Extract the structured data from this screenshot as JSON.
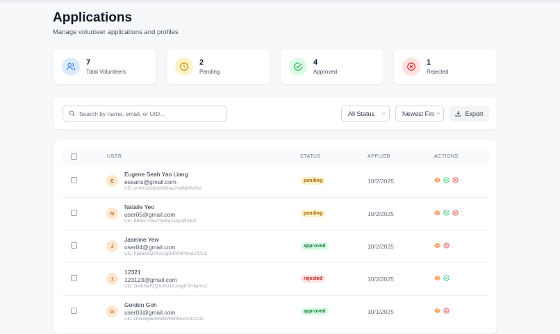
{
  "header": {
    "title": "Applications",
    "subtitle": "Manage volunteer applications and profiles"
  },
  "stats": [
    {
      "value": "7",
      "label": "Total Volunteers",
      "icon": "users-icon",
      "bg": "#dbeafe",
      "color": "#3b82f6"
    },
    {
      "value": "2",
      "label": "Pending",
      "icon": "clock-icon",
      "bg": "#fef3c7",
      "color": "#ca8a04"
    },
    {
      "value": "4",
      "label": "Approved",
      "icon": "check-circle-icon",
      "bg": "#dcfce7",
      "color": "#16a34a"
    },
    {
      "value": "1",
      "label": "Rejected",
      "icon": "x-circle-icon",
      "bg": "#fee2e2",
      "color": "#dc2626"
    }
  ],
  "filters": {
    "search_placeholder": "Search by name, email, or UID...",
    "status": "All Status",
    "sort": "Newest First",
    "export_label": "Export"
  },
  "table": {
    "columns": [
      "USER",
      "STATUS",
      "APPLIED",
      "ACTIONS"
    ],
    "rows": [
      {
        "initial": "E",
        "name": "Eugene Seah Yao Liang",
        "email": "eseahs@gmail.com",
        "uid": "UID: tzUHnXb2itcOWBHau7vwBd0PzPo2",
        "status": "pending",
        "applied": "10/2/2025",
        "actions": [
          "view",
          "approve",
          "reject"
        ]
      },
      {
        "initial": "N",
        "name": "Natalie Yeo",
        "email": "user05@gmail.com",
        "uid": "UID: BB9xv729xxYfydEgu3JIyJWUjkz1",
        "status": "pending",
        "applied": "10/2/2025",
        "actions": [
          "view",
          "approve",
          "reject"
        ]
      },
      {
        "initial": "J",
        "name": "Jasmine Yew",
        "email": "user04@gmail.com",
        "uid": "UID: KpBawSQG9vU1gRdRR0P3ywLYSVJ3",
        "status": "approved",
        "applied": "10/2/2025",
        "actions": [
          "view",
          "reject"
        ]
      },
      {
        "initial": "1",
        "name": "12321",
        "email": "123123@gmail.com",
        "uid": "UID: OuBrHwFZQ3UPzHhUzVgP7kY8qHm2",
        "status": "rejected",
        "applied": "10/2/2025",
        "actions": [
          "view",
          "approve"
        ]
      },
      {
        "initial": "G",
        "name": "Gorden Goh",
        "email": "user03@gmail.com",
        "uid": "UID: xPlovMp9utMWNVRWffs5mY4KC0J2",
        "status": "approved",
        "applied": "10/1/2025",
        "actions": [
          "view",
          "reject"
        ]
      }
    ]
  },
  "colors": {
    "view": "#f97316",
    "approve": "#22c55e",
    "reject": "#ef4444"
  }
}
